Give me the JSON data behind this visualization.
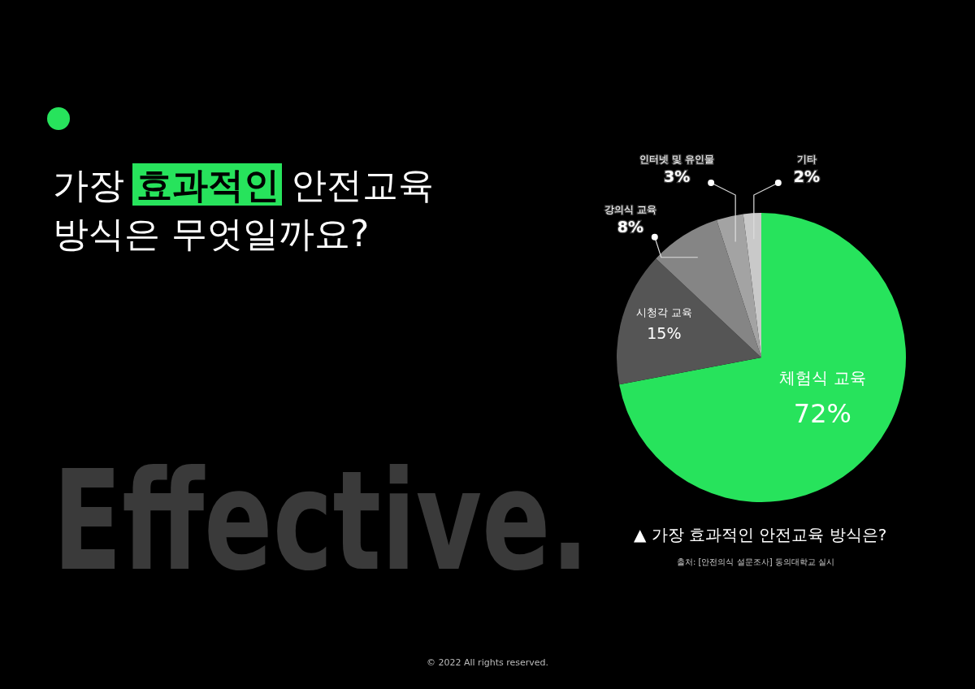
{
  "chart_data": {
    "type": "pie",
    "title": "가장 효과적인 안전교육\n방식은 무엇일까요?",
    "subtitle": "▲ 가장 효과적인 안전교육 방식은?",
    "categories": [
      "체험식 교육",
      "시청각 교육",
      "강의식 교육",
      "인터넷 및 유인물",
      "기타"
    ],
    "values": [
      72,
      15,
      8,
      3,
      2
    ],
    "colors": [
      "#27e35c",
      "#555555",
      "#858585",
      "#a3a3a3",
      "#c9c9c9"
    ],
    "value_labels": [
      "72%",
      "15%",
      "8%",
      "3%",
      "2%"
    ],
    "annotations": [
      "출처: [안전의식 설문조사] 동의대학교 실시",
      "Effective.",
      "© 2022 All rights reserved."
    ]
  }
}
